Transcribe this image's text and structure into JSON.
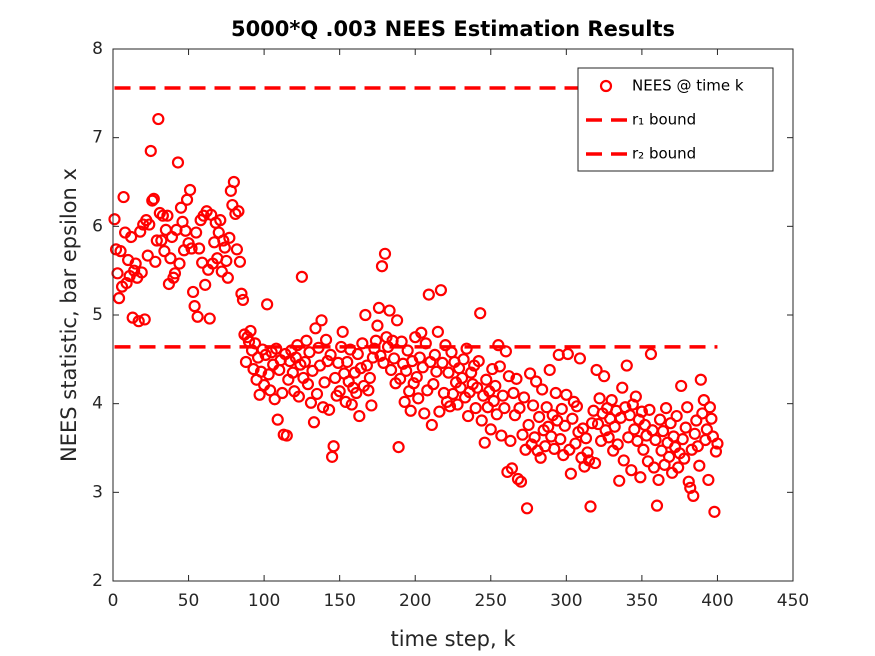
{
  "chart_data": {
    "type": "scatter",
    "title": "5000*Q .003 NEES Estimation Results",
    "xlabel": "time step, k",
    "ylabel": "NEES statistic, bar epsilon x",
    "xlim": [
      0,
      450
    ],
    "xticks": [
      0,
      50,
      100,
      150,
      200,
      250,
      300,
      350,
      400,
      450
    ],
    "ylim": [
      2,
      8
    ],
    "yticks": [
      2,
      3,
      4,
      5,
      6,
      7,
      8
    ],
    "legend": "upper right",
    "series": [
      {
        "name": "NEES @ time k",
        "color": "#ff0000",
        "marker": "circle",
        "x": [
          1,
          2,
          3,
          4,
          5,
          6,
          7,
          8,
          9,
          10,
          11,
          12,
          13,
          14,
          15,
          16,
          17,
          18,
          19,
          20,
          21,
          22,
          23,
          24,
          25,
          26,
          27,
          28,
          29,
          30,
          31,
          32,
          33,
          34,
          35,
          36,
          37,
          38,
          39,
          40,
          41,
          42,
          43,
          44,
          45,
          46,
          47,
          48,
          49,
          50,
          51,
          52,
          53,
          54,
          55,
          56,
          57,
          58,
          59,
          60,
          61,
          62,
          63,
          64,
          65,
          66,
          67,
          68,
          69,
          70,
          71,
          72,
          73,
          74,
          75,
          76,
          77,
          78,
          79,
          80,
          81,
          82,
          83,
          84,
          85,
          86,
          87,
          88,
          89,
          90,
          91,
          92,
          93,
          94,
          95,
          96,
          97,
          98,
          99,
          100,
          101,
          102,
          103,
          104,
          105,
          106,
          107,
          108,
          109,
          110,
          111,
          112,
          113,
          114,
          115,
          116,
          117,
          118,
          119,
          120,
          121,
          122,
          123,
          124,
          125,
          126,
          127,
          128,
          129,
          130,
          131,
          132,
          133,
          134,
          135,
          136,
          137,
          138,
          139,
          140,
          141,
          142,
          143,
          144,
          145,
          146,
          147,
          148,
          149,
          150,
          151,
          152,
          153,
          154,
          155,
          156,
          157,
          158,
          159,
          160,
          161,
          162,
          163,
          164,
          165,
          166,
          167,
          168,
          169,
          170,
          171,
          172,
          173,
          174,
          175,
          176,
          177,
          178,
          179,
          180,
          181,
          182,
          183,
          184,
          185,
          186,
          187,
          188,
          189,
          190,
          191,
          192,
          193,
          194,
          195,
          196,
          197,
          198,
          199,
          200,
          201,
          202,
          203,
          204,
          205,
          206,
          207,
          208,
          209,
          210,
          211,
          212,
          213,
          214,
          215,
          216,
          217,
          218,
          219,
          220,
          221,
          222,
          223,
          224,
          225,
          226,
          227,
          228,
          229,
          230,
          231,
          232,
          233,
          234,
          235,
          236,
          237,
          238,
          239,
          240,
          241,
          242,
          243,
          244,
          245,
          246,
          247,
          248,
          249,
          250,
          251,
          252,
          253,
          254,
          255,
          256,
          257,
          258,
          259,
          260,
          261,
          262,
          263,
          264,
          265,
          266,
          267,
          268,
          269,
          270,
          271,
          272,
          273,
          274,
          275,
          276,
          277,
          278,
          279,
          280,
          281,
          282,
          283,
          284,
          285,
          286,
          287,
          288,
          289,
          290,
          291,
          292,
          293,
          294,
          295,
          296,
          297,
          298,
          299,
          300,
          301,
          302,
          303,
          304,
          305,
          306,
          307,
          308,
          309,
          310,
          311,
          312,
          313,
          314,
          315,
          316,
          317,
          318,
          319,
          320,
          321,
          322,
          323,
          324,
          325,
          326,
          327,
          328,
          329,
          330,
          331,
          332,
          333,
          334,
          335,
          336,
          337,
          338,
          339,
          340,
          341,
          342,
          343,
          344,
          345,
          346,
          347,
          348,
          349,
          350,
          351,
          352,
          353,
          354,
          355,
          356,
          357,
          358,
          359,
          360,
          361,
          362,
          363,
          364,
          365,
          366,
          367,
          368,
          369,
          370,
          371,
          372,
          373,
          374,
          375,
          376,
          377,
          378,
          379,
          380,
          381,
          382,
          383,
          384,
          385,
          386,
          387,
          388,
          389,
          390,
          391,
          392,
          393,
          394,
          395,
          396,
          397,
          398,
          399,
          400
        ],
        "values": [
          6.08,
          5.74,
          5.47,
          5.19,
          5.72,
          5.32,
          6.33,
          5.93,
          5.36,
          5.62,
          5.44,
          5.88,
          4.97,
          5.5,
          5.58,
          5.42,
          4.93,
          5.94,
          5.48,
          6.02,
          4.95,
          6.07,
          5.67,
          6.02,
          6.85,
          6.29,
          6.31,
          5.6,
          5.84,
          7.21,
          6.15,
          5.84,
          6.12,
          5.72,
          5.96,
          6.12,
          5.35,
          5.64,
          5.88,
          5.42,
          5.47,
          5.96,
          6.72,
          5.58,
          6.21,
          6.05,
          5.73,
          5.95,
          6.3,
          5.81,
          6.41,
          5.75,
          5.26,
          5.1,
          5.93,
          4.98,
          5.75,
          6.07,
          5.59,
          6.12,
          5.34,
          6.17,
          5.51,
          4.96,
          6.13,
          5.58,
          5.82,
          6.04,
          5.64,
          5.93,
          6.07,
          5.49,
          5.84,
          5.76,
          5.61,
          5.42,
          5.87,
          6.4,
          6.24,
          6.5,
          6.14,
          5.74,
          6.17,
          5.6,
          5.24,
          5.17,
          4.78,
          4.47,
          4.75,
          4.7,
          4.82,
          4.6,
          4.39,
          4.68,
          4.27,
          4.52,
          4.1,
          4.36,
          4.61,
          4.21,
          4.55,
          5.12,
          4.33,
          4.15,
          4.58,
          4.44,
          4.05,
          4.62,
          3.82,
          4.38,
          4.49,
          4.12,
          3.65,
          4.56,
          3.64,
          4.27,
          4.48,
          4.6,
          4.35,
          4.14,
          4.52,
          4.66,
          4.08,
          4.44,
          5.43,
          4.29,
          4.47,
          4.71,
          4.22,
          4.58,
          4.01,
          4.37,
          3.79,
          4.85,
          4.11,
          4.63,
          4.43,
          4.94,
          3.96,
          4.24,
          4.72,
          4.48,
          3.93,
          4.55,
          3.4,
          3.52,
          4.29,
          4.09,
          4.46,
          4.14,
          4.64,
          4.81,
          4.34,
          4.02,
          4.47,
          4.25,
          4.61,
          3.99,
          4.18,
          4.35,
          4.12,
          4.56,
          3.86,
          4.4,
          4.68,
          4.2,
          5.0,
          4.43,
          4.15,
          4.29,
          3.98,
          4.52,
          4.62,
          4.71,
          4.88,
          5.08,
          4.54,
          5.55,
          4.46,
          5.69,
          4.75,
          4.64,
          5.05,
          4.38,
          4.71,
          4.51,
          4.23,
          4.94,
          3.51,
          4.28,
          4.7,
          4.45,
          4.02,
          4.37,
          4.6,
          4.14,
          3.92,
          4.48,
          4.23,
          4.75,
          4.3,
          4.06,
          4.52,
          4.8,
          4.41,
          3.89,
          4.68,
          4.15,
          5.23,
          4.47,
          3.76,
          4.22,
          4.55,
          4.36,
          4.81,
          3.91,
          5.28,
          4.46,
          4.12,
          4.66,
          4.02,
          4.35,
          3.97,
          4.58,
          4.11,
          4.47,
          4.24,
          3.99,
          4.4,
          4.18,
          4.29,
          4.5,
          4.07,
          4.62,
          3.86,
          4.13,
          4.35,
          4.22,
          4.43,
          3.95,
          4.18,
          4.48,
          5.02,
          3.81,
          4.09,
          3.56,
          4.27,
          3.96,
          4.14,
          3.71,
          4.39,
          4.03,
          4.2,
          3.88,
          4.66,
          4.42,
          3.64,
          4.09,
          3.95,
          4.59,
          3.23,
          4.31,
          3.58,
          3.27,
          4.12,
          3.87,
          4.28,
          3.15,
          3.95,
          3.12,
          3.65,
          4.07,
          3.48,
          2.82,
          3.76,
          4.34,
          3.54,
          3.98,
          3.62,
          4.25,
          3.47,
          3.85,
          3.39,
          4.16,
          3.7,
          3.52,
          3.96,
          3.74,
          4.38,
          3.63,
          3.87,
          3.49,
          4.12,
          3.81,
          4.55,
          3.6,
          3.94,
          3.42,
          3.75,
          4.1,
          4.56,
          3.48,
          3.21,
          3.83,
          4.02,
          3.55,
          3.97,
          3.68,
          4.51,
          3.39,
          3.72,
          3.29,
          3.61,
          3.45,
          3.36,
          2.84,
          3.78,
          3.92,
          3.33,
          4.38,
          3.77,
          4.06,
          3.58,
          3.89,
          4.31,
          3.7,
          3.95,
          3.62,
          3.83,
          4.04,
          3.47,
          3.74,
          3.92,
          3.54,
          3.13,
          3.84,
          4.18,
          3.36,
          3.96,
          4.43,
          3.62,
          3.87,
          3.25,
          3.99,
          3.71,
          4.08,
          3.58,
          3.82,
          3.17,
          3.91,
          3.48,
          3.76,
          3.64,
          3.35,
          3.93,
          4.56,
          3.7,
          3.28,
          3.59,
          2.85,
          3.14,
          3.82,
          3.47,
          3.69,
          3.31,
          3.95,
          3.56,
          3.4,
          3.78,
          3.22,
          3.63,
          3.51,
          3.86,
          3.28,
          3.44,
          4.2,
          3.6,
          3.38,
          3.73,
          3.96,
          3.12,
          3.05,
          3.48,
          2.96,
          3.66,
          3.81,
          3.52,
          3.3,
          4.27,
          3.89,
          4.04,
          3.59,
          3.71,
          3.14,
          3.96,
          3.83,
          3.63,
          2.78,
          3.46,
          3.55
        ]
      },
      {
        "name": "r₁ bound",
        "color": "#ff0000",
        "marker": "dashed-line",
        "x": [
          1,
          400
        ],
        "values": [
          4.64,
          4.64
        ]
      },
      {
        "name": "r₂ bound",
        "color": "#ff0000",
        "marker": "dashed-line",
        "x": [
          1,
          400
        ],
        "values": [
          7.56,
          7.56
        ]
      }
    ]
  }
}
